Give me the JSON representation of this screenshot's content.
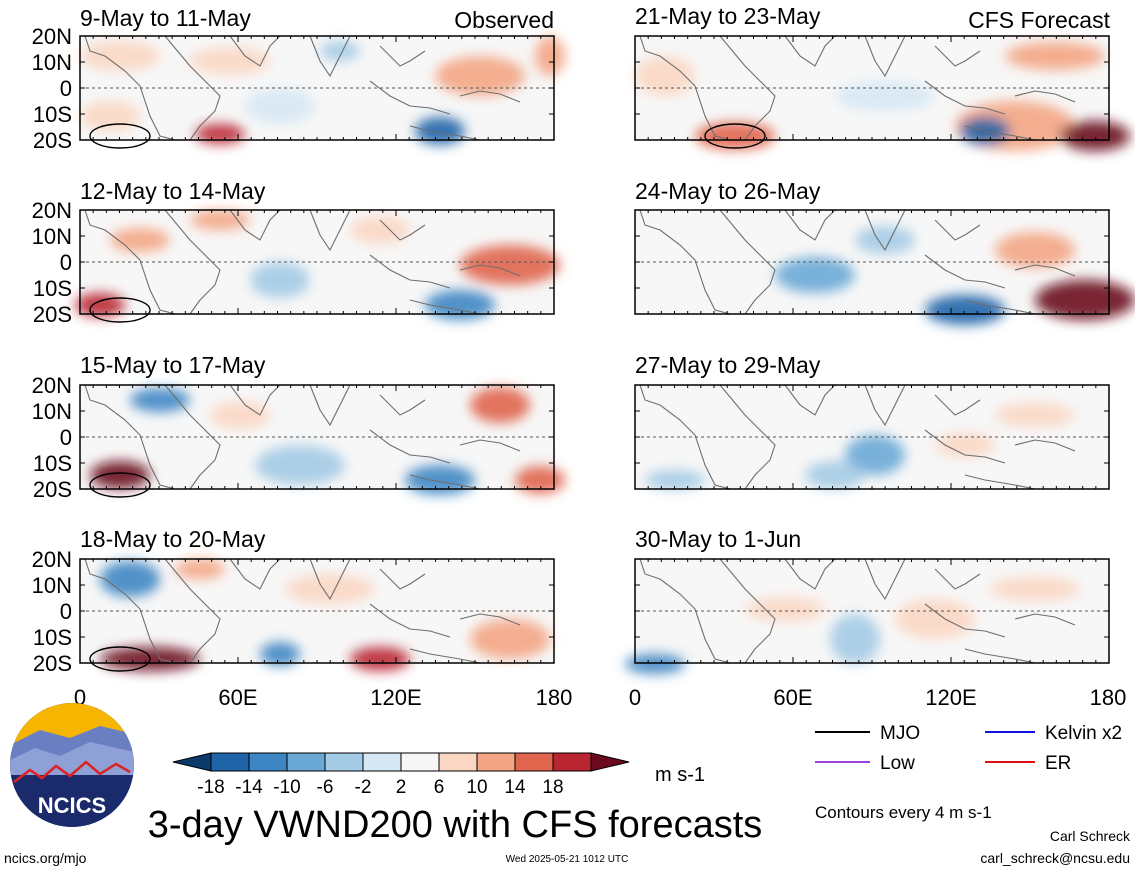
{
  "panels": [
    {
      "id": "p1",
      "title": "9-May to 11-May",
      "tag": "Observed"
    },
    {
      "id": "p2",
      "title": "12-May to 14-May",
      "tag": ""
    },
    {
      "id": "p3",
      "title": "15-May to 17-May",
      "tag": ""
    },
    {
      "id": "p4",
      "title": "18-May to 20-May",
      "tag": ""
    },
    {
      "id": "p5",
      "title": "21-May to 23-May",
      "tag": "CFS Forecast"
    },
    {
      "id": "p6",
      "title": "24-May to 26-May",
      "tag": ""
    },
    {
      "id": "p7",
      "title": "27-May to 29-May",
      "tag": ""
    },
    {
      "id": "p8",
      "title": "30-May to 1-Jun",
      "tag": ""
    }
  ],
  "y_ticks": [
    "20N",
    "10N",
    "0",
    "10S",
    "20S"
  ],
  "x_ticks": [
    "0",
    "60E",
    "120E",
    "180"
  ],
  "colorbar": {
    "labels": [
      "-18",
      "-14",
      "-10",
      "-6",
      "-2",
      "2",
      "6",
      "10",
      "14",
      "18"
    ],
    "colors": [
      "#0b3a6b",
      "#1f64a8",
      "#3d86c3",
      "#6aa8d6",
      "#a4cbe6",
      "#d6e8f4",
      "#f7f7f7",
      "#fbd7c3",
      "#f4a584",
      "#e0654d",
      "#b92531",
      "#6b0a1f"
    ],
    "unit": "m s-1"
  },
  "legend": {
    "items": [
      {
        "label": "MJO",
        "color": "#000000"
      },
      {
        "label": "Kelvin x2",
        "color": "#1010e0"
      },
      {
        "label": "Low",
        "color": "#a040e0"
      },
      {
        "label": "ER",
        "color": "#e01010"
      }
    ],
    "contour_note": "Contours every 4 m s-1"
  },
  "main_title": "3-day VWND200 with CFS forecasts",
  "logo_text": "NCICS",
  "footer": {
    "left": "ncics.org/mjo",
    "center": "Wed 2025-05-21 1012 UTC",
    "author": "Carl Schreck",
    "email": "carl_schreck@ncsu.edu"
  }
}
